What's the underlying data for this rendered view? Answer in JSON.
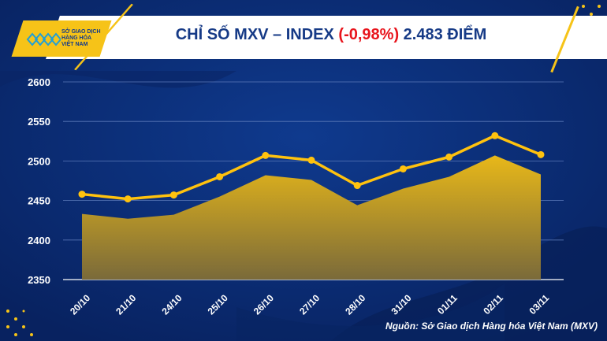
{
  "header": {
    "title_prefix": "CHỈ SỐ MXV – INDEX ",
    "title_change": "(-0,98%)",
    "title_suffix": " 2.483 ĐIỂM",
    "logo_text": [
      "SỞ GIAO DỊCH",
      "HÀNG HÓA",
      "VIỆT NAM"
    ]
  },
  "source": "Nguồn: Sở Giao dịch Hàng hóa Việt Nam (MXV)",
  "colors": {
    "background": "#0b2a70",
    "accent": "#f6c318",
    "change_negative": "#e8141c"
  },
  "chart_data": {
    "type": "area",
    "title": "CHỈ SỐ MXV – INDEX (-0,98%) 2.483 ĐIỂM",
    "categories": [
      "20/10",
      "21/10",
      "24/10",
      "25/10",
      "26/10",
      "27/10",
      "28/10",
      "31/10",
      "01/11",
      "02/11",
      "03/11"
    ],
    "values": [
      2433,
      2427,
      2432,
      2455,
      2482,
      2476,
      2444,
      2465,
      2480,
      2507,
      2483
    ],
    "line_offset": 25,
    "ylim": [
      2350,
      2600
    ],
    "yticks": [
      "2350",
      "2400",
      "2450",
      "2500",
      "2550",
      "2600"
    ],
    "grid": true,
    "xlabel": "",
    "ylabel": ""
  }
}
